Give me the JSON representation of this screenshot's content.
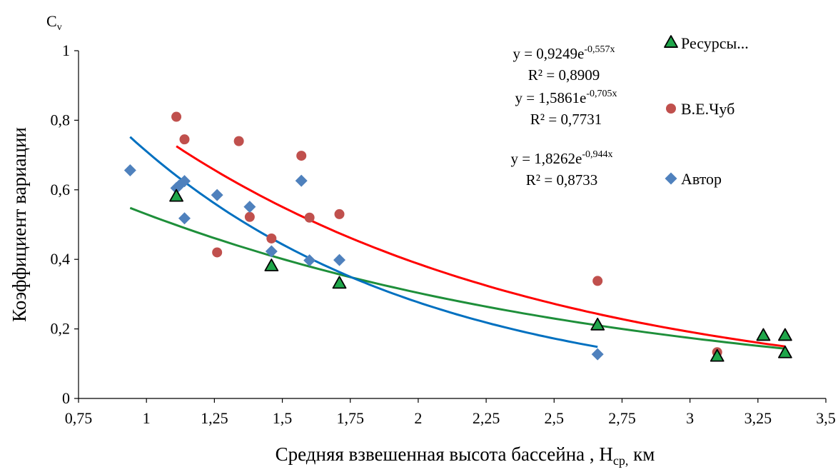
{
  "chart_data": {
    "type": "scatter",
    "title": "",
    "xlabel": "Средняя взвешенная высота бассейна , H",
    "xlabel_sub": "ср,",
    "xlabel_unit": "км",
    "ylabel": "Коэффициент вариации",
    "y_axis_caption": "C",
    "y_axis_caption_sub": "v",
    "xlim": [
      0.75,
      3.5
    ],
    "ylim": [
      0,
      1
    ],
    "x_ticks": [
      "0,75",
      "1",
      "1,25",
      "1,5",
      "1,75",
      "2",
      "2,25",
      "2,5",
      "2,75",
      "3",
      "3,25",
      "3,5"
    ],
    "y_ticks": [
      "0",
      "0,2",
      "0,4",
      "0,6",
      "0,8",
      "1"
    ],
    "grid": false,
    "legend_position": "right",
    "series": [
      {
        "name": "Ресурсы...",
        "marker": "triangle",
        "color": "#1fa64a",
        "x": [
          1.11,
          1.46,
          1.71,
          2.66,
          3.1,
          3.27,
          3.35,
          3.35
        ],
        "y": [
          0.58,
          0.38,
          0.33,
          0.21,
          0.12,
          0.18,
          0.18,
          0.13
        ],
        "trend": {
          "a": 0.9249,
          "b": -0.557,
          "from": 0.94,
          "to": 3.35,
          "color": "#1e8f3a"
        },
        "equation": "y = 0,9249e",
        "equation_exp": "-0,557x",
        "r2": "R² = 0,8909"
      },
      {
        "name": "В.Е.Чуб",
        "marker": "circle",
        "color": "#c0504d",
        "x": [
          1.11,
          1.14,
          1.26,
          1.34,
          1.38,
          1.46,
          1.57,
          1.6,
          1.71,
          2.66,
          3.1
        ],
        "y": [
          0.81,
          0.745,
          0.42,
          0.74,
          0.522,
          0.46,
          0.698,
          0.52,
          0.53,
          0.338,
          0.133
        ],
        "trend": {
          "a": 1.5861,
          "b": -0.705,
          "from": 1.11,
          "to": 3.35,
          "color": "#ff0000"
        },
        "equation": "y = 1,5861e",
        "equation_exp": "-0,705x",
        "r2": "R² = 0,7731"
      },
      {
        "name": "Автор",
        "marker": "diamond",
        "color": "#4f81bd",
        "x": [
          0.94,
          1.11,
          1.12,
          1.14,
          1.14,
          1.26,
          1.38,
          1.46,
          1.57,
          1.6,
          1.71,
          2.66
        ],
        "y": [
          0.656,
          0.605,
          0.612,
          0.625,
          0.518,
          0.585,
          0.551,
          0.423,
          0.626,
          0.397,
          0.398,
          0.127
        ],
        "trend": {
          "a": 1.8262,
          "b": -0.944,
          "from": 0.94,
          "to": 2.66,
          "color": "#0070c0"
        },
        "equation": "y = 1,8262e",
        "equation_exp": "-0,944x",
        "r2": "R² = 0,8733"
      }
    ]
  }
}
